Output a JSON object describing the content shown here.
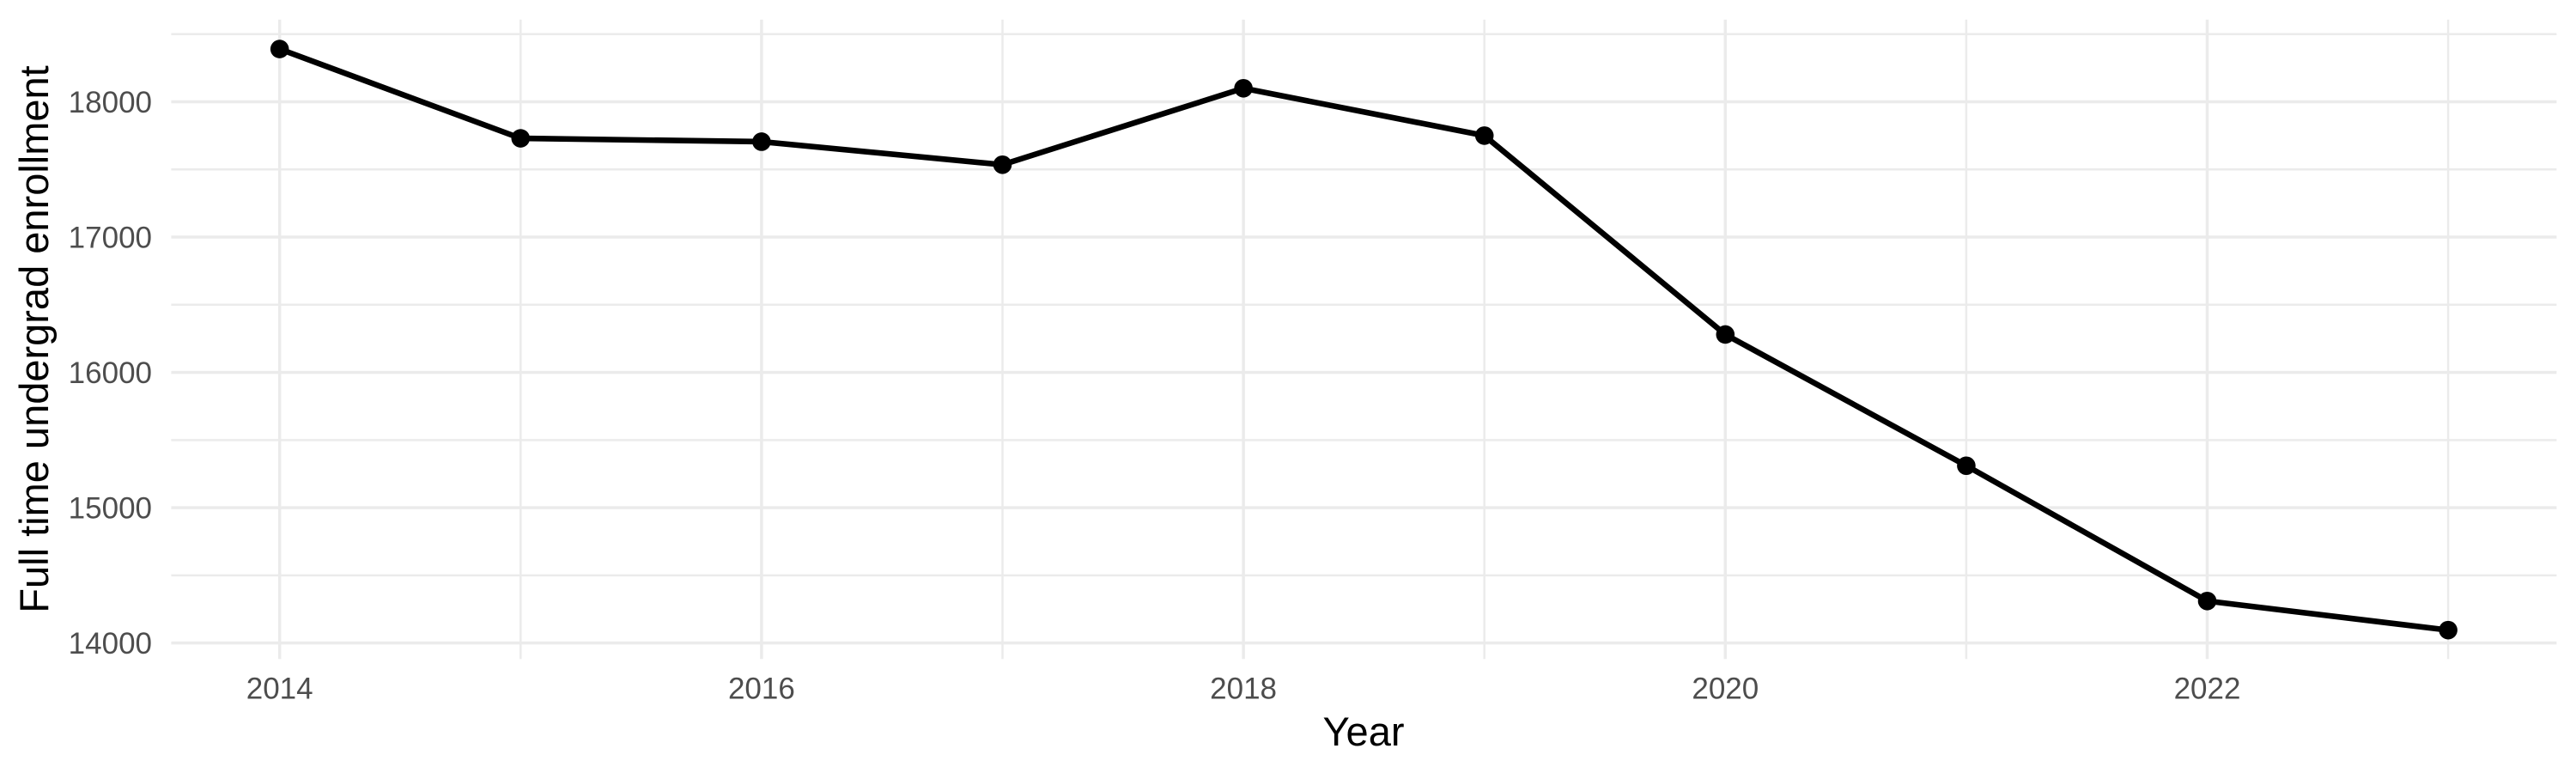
{
  "chart_data": {
    "type": "line",
    "title": "",
    "xlabel": "Year",
    "ylabel": "Full time undergrad enrollment",
    "x": [
      2014,
      2015,
      2016,
      2017,
      2018,
      2019,
      2020,
      2021,
      2022,
      2023
    ],
    "values": [
      18390,
      17730,
      17705,
      17535,
      18100,
      17750,
      16280,
      15310,
      14310,
      14095
    ],
    "series_name": "Full time undergrad enrollment",
    "xlim": [
      2013.55,
      2023.45
    ],
    "ylim": [
      13882,
      18607
    ],
    "x_major_ticks": [
      2014,
      2016,
      2018,
      2020,
      2022
    ],
    "x_major_tick_labels": [
      "2014",
      "2016",
      "2018",
      "2020",
      "2022"
    ],
    "x_minor_gridlines": [
      2015,
      2017,
      2019,
      2021,
      2023
    ],
    "y_major_ticks": [
      14000,
      15000,
      16000,
      17000,
      18000
    ],
    "y_major_tick_labels": [
      "14000",
      "15000",
      "16000",
      "17000",
      "18000"
    ],
    "y_minor_gridlines": [
      14500,
      15500,
      16500,
      17500,
      18500
    ],
    "grid": "major-and-minor",
    "legend": false,
    "marker": "point",
    "colors": {
      "line": "#000000",
      "point": "#000000",
      "grid": "#EBEBEB",
      "tick_label": "#4D4D4D",
      "axis_title": "#000000",
      "background": "#FFFFFF"
    }
  }
}
